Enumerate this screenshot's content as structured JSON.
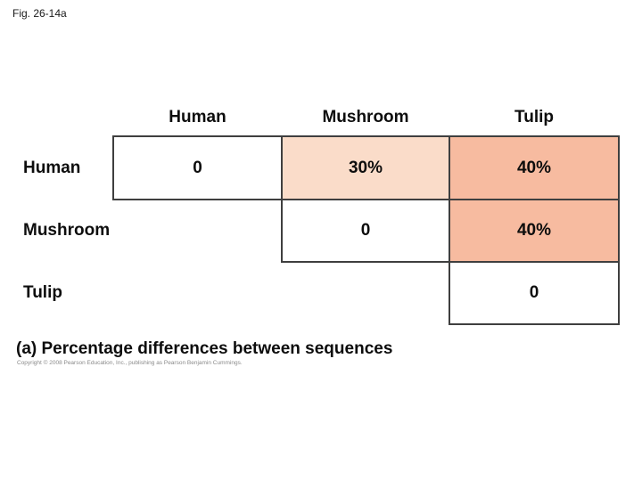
{
  "figure_label": "Fig. 26-14a",
  "matrix": {
    "column_headers": [
      "Human",
      "Mushroom",
      "Tulip"
    ],
    "row_labels": [
      "Human",
      "Mushroom",
      "Tulip"
    ],
    "cells": {
      "human_human": "0",
      "human_mushroom": "30%",
      "human_tulip": "40%",
      "mushroom_mushroom": "0",
      "mushroom_tulip": "40%",
      "tulip_tulip": "0"
    }
  },
  "caption": "(a) Percentage differences between sequences",
  "copyright": "Copyright © 2008 Pearson Education, Inc., publishing as Pearson Benjamin Cummings.",
  "colors": {
    "background": "#FFFFFF",
    "cell_white": "#FFFFFF",
    "cell_light_peach": "#FADCC9",
    "cell_salmon": "#F7BBA0",
    "cell_border": "#3F3F3F",
    "text": "#000000"
  },
  "chart_data": {
    "type": "table",
    "title": "(a) Percentage differences between sequences",
    "column_labels": [
      "Human",
      "Mushroom",
      "Tulip"
    ],
    "row_labels": [
      "Human",
      "Mushroom",
      "Tulip"
    ],
    "values_percent_difference": [
      [
        0,
        30,
        40
      ],
      [
        null,
        0,
        40
      ],
      [
        null,
        null,
        0
      ]
    ],
    "display_matrix": [
      [
        "0",
        "30%",
        "40%"
      ],
      [
        "",
        "0",
        "40%"
      ],
      [
        "",
        "",
        "0"
      ]
    ]
  }
}
